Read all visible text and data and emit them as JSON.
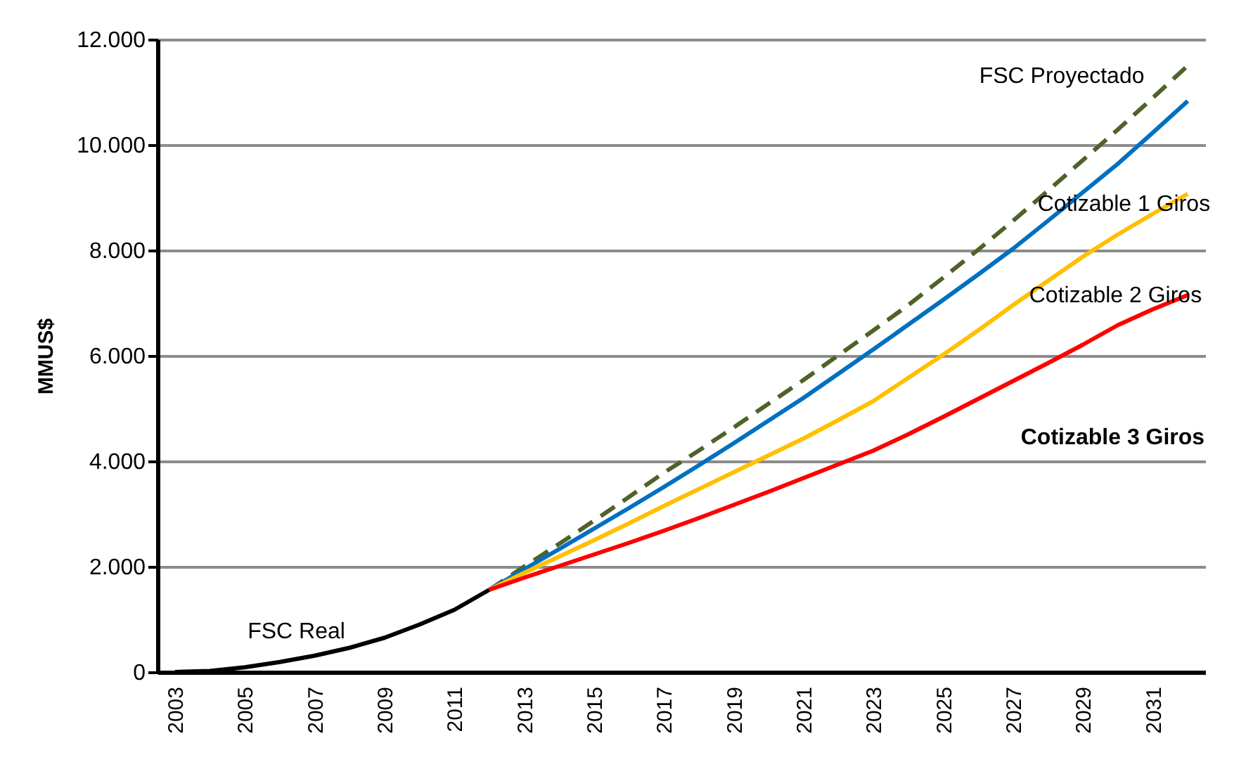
{
  "chart_data": {
    "type": "line",
    "ylabel": "MMUS$",
    "categories": [
      "2003",
      null,
      "2005",
      null,
      "2007",
      null,
      "2009",
      null,
      "2011",
      null,
      "2013",
      null,
      "2015",
      null,
      "2017",
      null,
      "2019",
      null,
      "2021",
      null,
      "2023",
      null,
      "2025",
      null,
      "2027",
      null,
      "2029",
      null,
      "2031",
      null
    ],
    "series": [
      {
        "name": "FSC Real",
        "color": "#000000",
        "line_style": "solid",
        "values": [
          0,
          20,
          90,
          190,
          310,
          460,
          650,
          900,
          1180,
          1560,
          null,
          null,
          null,
          null,
          null,
          null,
          null,
          null,
          null,
          null,
          null,
          null,
          null,
          null,
          null,
          null,
          null,
          null,
          null,
          null
        ]
      },
      {
        "name": "FSC Proyectado",
        "color": "#4f6228",
        "line_style": "dashed",
        "values": [
          null,
          null,
          null,
          null,
          null,
          null,
          null,
          null,
          null,
          1560,
          2000,
          2430,
          2870,
          3320,
          3780,
          4200,
          4640,
          5090,
          5540,
          6010,
          6480,
          6960,
          7480,
          8010,
          8560,
          9130,
          9710,
          10290,
          10890,
          11500
        ]
      },
      {
        "name": "Cotizable 1 Giros",
        "color": "#0070c0",
        "line_style": "solid",
        "values": [
          null,
          null,
          null,
          null,
          null,
          null,
          null,
          null,
          null,
          1560,
          1950,
          2330,
          2720,
          3110,
          3510,
          3920,
          4340,
          4770,
          5200,
          5660,
          6120,
          6590,
          7060,
          7540,
          8030,
          8560,
          9100,
          9640,
          10230,
          10830
        ]
      },
      {
        "name": "Cotizable 2 Giros",
        "color": "#ffc000",
        "line_style": "solid",
        "values": [
          null,
          null,
          null,
          null,
          null,
          null,
          null,
          null,
          null,
          1560,
          1880,
          2190,
          2500,
          2820,
          3150,
          3470,
          3790,
          4110,
          4430,
          4780,
          5140,
          5580,
          6020,
          6480,
          6960,
          7420,
          7880,
          8300,
          8690,
          9070
        ]
      },
      {
        "name": "Cotizable 3 Giros",
        "color": "#ff0000",
        "line_style": "solid",
        "values": [
          null,
          null,
          null,
          null,
          null,
          null,
          null,
          null,
          null,
          1560,
          1790,
          2010,
          2230,
          2450,
          2680,
          2920,
          3170,
          3420,
          3680,
          3940,
          4200,
          4510,
          4840,
          5180,
          5520,
          5860,
          6210,
          6580,
          6880,
          7150
        ]
      }
    ],
    "ylim": [
      0,
      12000
    ],
    "yticks": [
      {
        "value": 0,
        "label": "0"
      },
      {
        "value": 2000,
        "label": "2.000"
      },
      {
        "value": 4000,
        "label": "4.000"
      },
      {
        "value": 6000,
        "label": "6.000"
      },
      {
        "value": 8000,
        "label": "8.000"
      },
      {
        "value": 10000,
        "label": "10.000"
      },
      {
        "value": 12000,
        "label": "12.000"
      }
    ],
    "grid": "y",
    "legend": false,
    "marker": "none"
  }
}
